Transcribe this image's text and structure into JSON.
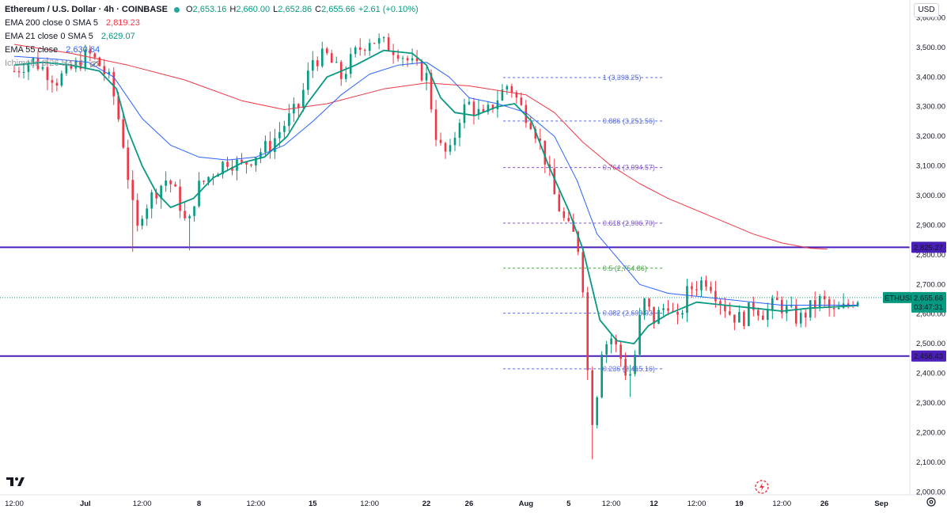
{
  "header": {
    "symbol_title": "Ethereum / U.S. Dollar · 4h · COINBASE",
    "ohlc": {
      "open_label": "O",
      "open": "2,653.16",
      "high_label": "H",
      "high": "2,660.00",
      "low_label": "L",
      "low": "2,652.86",
      "close_label": "C",
      "close": "2,655.66",
      "change": "+2.61 (+0.10%)"
    },
    "indicators": [
      {
        "label": "EMA 200 close 0 SMA 5",
        "value": "2,819.23",
        "color": "#f23645"
      },
      {
        "label": "EMA 21 close 0 SMA 5",
        "value": "2,629.07",
        "color": "#089981"
      },
      {
        "label": "EMA 55 close",
        "value": "2,630.64",
        "color": "#2962ff"
      },
      {
        "label": "Ichimoku 9 26 52 26",
        "value": "",
        "color": "#9598a1"
      }
    ],
    "currency_button": "USD"
  },
  "chart_data": {
    "type": "candlestick",
    "title": "Ethereum / U.S. Dollar · 4h · COINBASE",
    "y_ticks": [
      2000,
      2100,
      2200,
      2300,
      2400,
      2500,
      2600,
      2700,
      2800,
      2900,
      3000,
      3100,
      3200,
      3300,
      3400,
      3500,
      3600
    ],
    "y_tick_labels": [
      "2,000.00",
      "2,100.00",
      "2,200.00",
      "2,300.00",
      "2,400.00",
      "2,500.00",
      "2,600.00",
      "2,700.00",
      "2,800.00",
      "2,900.00",
      "3,000.00",
      "3,100.00",
      "3,200.00",
      "3,300.00",
      "3,400.00",
      "3,500.00",
      "3,600.00"
    ],
    "ylim": [
      1990,
      3660
    ],
    "x_tick_labels": [
      "12:00",
      "Jul",
      "12:00",
      "8",
      "12:00",
      "15",
      "12:00",
      "22",
      "26",
      "Aug",
      "5",
      "12:00",
      "12",
      "12:00",
      "19",
      "12:00",
      "26",
      "Sep"
    ],
    "x_tick_days": [
      0,
      2.5,
      4.5,
      6.5,
      8.5,
      10.5,
      12.5,
      14.5,
      16,
      18,
      19.5,
      21,
      22.5,
      24,
      25.5,
      27,
      28.5,
      30.5
    ],
    "x_days_range": [
      -0.5,
      31.5
    ],
    "price_path": [
      [
        0,
        3420
      ],
      [
        0.6,
        3460
      ],
      [
        1,
        3430
      ],
      [
        1.5,
        3390
      ],
      [
        2.2,
        3440
      ],
      [
        2.6,
        3480
      ],
      [
        3,
        3440
      ],
      [
        3.4,
        3380
      ],
      [
        3.8,
        3200
      ],
      [
        4.1,
        3000
      ],
      [
        4.3,
        2870
      ],
      [
        4.5,
        2950
      ],
      [
        5,
        3020
      ],
      [
        5.4,
        3060
      ],
      [
        5.8,
        2980
      ],
      [
        6.1,
        2880
      ],
      [
        6.4,
        3020
      ],
      [
        7,
        3080
      ],
      [
        7.5,
        3120
      ],
      [
        8,
        3100
      ],
      [
        8.5,
        3140
      ],
      [
        9,
        3170
      ],
      [
        9.5,
        3240
      ],
      [
        10,
        3300
      ],
      [
        10.5,
        3460
      ],
      [
        11,
        3470
      ],
      [
        11.5,
        3400
      ],
      [
        12,
        3480
      ],
      [
        12.5,
        3530
      ],
      [
        13,
        3510
      ],
      [
        13.5,
        3490
      ],
      [
        14,
        3440
      ],
      [
        14.5,
        3400
      ],
      [
        14.9,
        3170
      ],
      [
        15.3,
        3130
      ],
      [
        15.7,
        3280
      ],
      [
        16,
        3310
      ],
      [
        16.5,
        3260
      ],
      [
        17,
        3330
      ],
      [
        17.4,
        3380
      ],
      [
        17.8,
        3300
      ],
      [
        18.2,
        3250
      ],
      [
        18.6,
        3150
      ],
      [
        19,
        3000
      ],
      [
        19.4,
        2900
      ],
      [
        19.8,
        2850
      ],
      [
        20,
        2700
      ],
      [
        20.2,
        2350
      ],
      [
        20.4,
        2200
      ],
      [
        20.6,
        2480
      ],
      [
        21,
        2520
      ],
      [
        21.3,
        2460
      ],
      [
        21.6,
        2380
      ],
      [
        21.8,
        2440
      ],
      [
        22.1,
        2650
      ],
      [
        22.5,
        2580
      ],
      [
        23,
        2640
      ],
      [
        23.3,
        2560
      ],
      [
        23.7,
        2680
      ],
      [
        24,
        2700
      ],
      [
        24.4,
        2720
      ],
      [
        24.8,
        2650
      ],
      [
        25.2,
        2600
      ],
      [
        25.6,
        2580
      ],
      [
        26,
        2630
      ],
      [
        26.4,
        2600
      ],
      [
        26.8,
        2640
      ],
      [
        27.2,
        2610
      ],
      [
        27.6,
        2580
      ],
      [
        28,
        2620
      ],
      [
        28.4,
        2650
      ],
      [
        28.8,
        2600
      ],
      [
        29.2,
        2620
      ],
      [
        29.5,
        2650
      ],
      [
        29.7,
        2656
      ]
    ],
    "lows": [
      [
        4.2,
        2810
      ],
      [
        6.1,
        2815
      ],
      [
        20.3,
        2110
      ],
      [
        21.7,
        2320
      ]
    ],
    "series": [
      {
        "name": "EMA 200 close 0 SMA 5",
        "color": "#f23645",
        "points": [
          [
            0,
            3510
          ],
          [
            2,
            3480
          ],
          [
            4,
            3440
          ],
          [
            6,
            3390
          ],
          [
            8,
            3320
          ],
          [
            9.5,
            3290
          ],
          [
            11,
            3310
          ],
          [
            13,
            3360
          ],
          [
            14.5,
            3380
          ],
          [
            16,
            3370
          ],
          [
            18,
            3340
          ],
          [
            19,
            3280
          ],
          [
            20,
            3180
          ],
          [
            21,
            3100
          ],
          [
            22,
            3040
          ],
          [
            23,
            2990
          ],
          [
            24,
            2950
          ],
          [
            25,
            2910
          ],
          [
            26,
            2870
          ],
          [
            27,
            2840
          ],
          [
            28,
            2822
          ],
          [
            28.6,
            2819
          ]
        ]
      },
      {
        "name": "EMA 21 close 0 SMA 5",
        "color": "#089981",
        "points": [
          [
            0,
            3440
          ],
          [
            1,
            3450
          ],
          [
            2,
            3440
          ],
          [
            3,
            3420
          ],
          [
            3.6,
            3360
          ],
          [
            4,
            3220
          ],
          [
            4.5,
            3100
          ],
          [
            5,
            3010
          ],
          [
            5.5,
            2960
          ],
          [
            6.3,
            2990
          ],
          [
            7,
            3060
          ],
          [
            8,
            3110
          ],
          [
            8.8,
            3130
          ],
          [
            9.6,
            3200
          ],
          [
            10.3,
            3310
          ],
          [
            11,
            3400
          ],
          [
            12,
            3440
          ],
          [
            13,
            3490
          ],
          [
            14,
            3480
          ],
          [
            14.5,
            3440
          ],
          [
            15,
            3330
          ],
          [
            15.5,
            3280
          ],
          [
            16.2,
            3270
          ],
          [
            17,
            3300
          ],
          [
            17.6,
            3310
          ],
          [
            18.2,
            3250
          ],
          [
            18.8,
            3100
          ],
          [
            19.5,
            2950
          ],
          [
            20,
            2820
          ],
          [
            20.6,
            2580
          ],
          [
            21.2,
            2510
          ],
          [
            21.8,
            2500
          ],
          [
            22.3,
            2560
          ],
          [
            23,
            2600
          ],
          [
            24,
            2640
          ],
          [
            25,
            2630
          ],
          [
            26,
            2620
          ],
          [
            27,
            2610
          ],
          [
            28,
            2620
          ],
          [
            29,
            2625
          ],
          [
            29.7,
            2629
          ]
        ]
      },
      {
        "name": "EMA 55 close",
        "color": "#2962ff",
        "points": [
          [
            0,
            3470
          ],
          [
            1.5,
            3460
          ],
          [
            2.6,
            3450
          ],
          [
            3.5,
            3400
          ],
          [
            4.5,
            3260
          ],
          [
            5.5,
            3170
          ],
          [
            6.5,
            3130
          ],
          [
            7.5,
            3120
          ],
          [
            8.5,
            3130
          ],
          [
            9.5,
            3170
          ],
          [
            10.5,
            3250
          ],
          [
            11.5,
            3340
          ],
          [
            12.5,
            3410
          ],
          [
            13.5,
            3440
          ],
          [
            14.5,
            3450
          ],
          [
            15.3,
            3400
          ],
          [
            16,
            3330
          ],
          [
            17,
            3310
          ],
          [
            18,
            3280
          ],
          [
            19,
            3200
          ],
          [
            19.8,
            3050
          ],
          [
            20.5,
            2870
          ],
          [
            21.3,
            2780
          ],
          [
            22,
            2700
          ],
          [
            23,
            2670
          ],
          [
            24,
            2660
          ],
          [
            25,
            2650
          ],
          [
            26,
            2640
          ],
          [
            27,
            2630
          ],
          [
            28,
            2630
          ],
          [
            29.7,
            2630
          ]
        ]
      }
    ],
    "horizontal_lines": [
      {
        "price": 2825.27,
        "label": "2,825.27",
        "color": "#4a1fb8"
      },
      {
        "price": 2458.43,
        "label": "2,458.43",
        "color": "#4a1fb8"
      }
    ],
    "last_price": {
      "symbol": "ETHUSD",
      "price": 2655.66,
      "label": "2,655.66",
      "countdown": "03:47:31",
      "color": "#089981"
    },
    "fibonacci": {
      "x_start_day": 17.2,
      "x_end_day": 22.8,
      "levels": [
        {
          "ratio": "1",
          "price": 3398.25,
          "label": "1 (3,398.25)",
          "color": "#5b6bd8"
        },
        {
          "ratio": "0.886",
          "price": 3251.56,
          "label": "0.886 (3,251.56)",
          "color": "#5b6bd8"
        },
        {
          "ratio": "0.764",
          "price": 3094.57,
          "label": "0.764 (3,094.57)",
          "color": "#7e57c2"
        },
        {
          "ratio": "0.618",
          "price": 2906.7,
          "label": "0.618 (2,906.70)",
          "color": "#7e57c2"
        },
        {
          "ratio": "0.5",
          "price": 2754.86,
          "label": "0.5 (2,754.86)",
          "color": "#43a047"
        },
        {
          "ratio": "0.382",
          "price": 2603.03,
          "label": "0.382 (2,603.03)",
          "color": "#5b6bd8"
        },
        {
          "ratio": "0.236",
          "price": 2415.16,
          "label": "0.236 (2,415.16)",
          "color": "#5b6bd8"
        }
      ]
    },
    "up_color": "#089981",
    "down_color": "#f23645",
    "grid": false
  }
}
